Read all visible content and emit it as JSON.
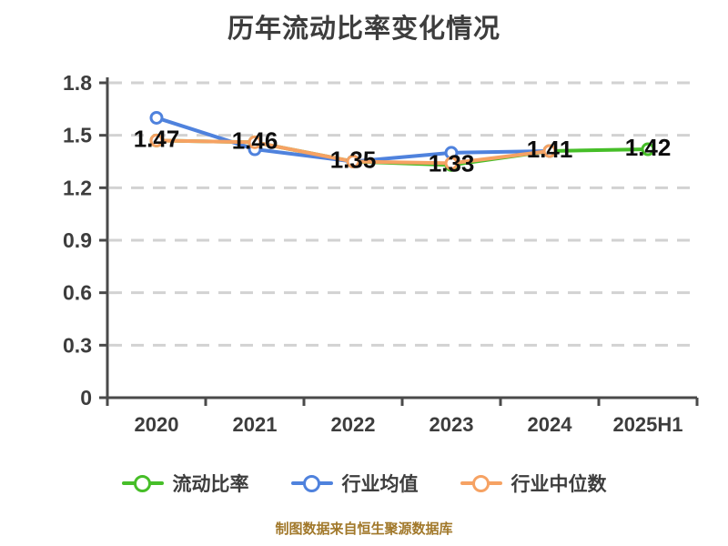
{
  "title": "历年流动比率变化情况",
  "footer": {
    "source_note": "制图数据来自恒生聚源数据库"
  },
  "theme": {
    "background": "#ffffff",
    "title_text": "#3d3d3d",
    "axis_line": "#4a4a4a",
    "grid_line": "#d2d2d2",
    "tick_text": "#3d3d3d",
    "label_text": "#0d0d0d",
    "legend_text": "#3d3d3d",
    "footer_text": "#a1782a"
  },
  "chart_data": {
    "type": "line",
    "title": "历年流动比率变化情况",
    "categories": [
      "2020",
      "2021",
      "2022",
      "2023",
      "2024",
      "2025H1"
    ],
    "series": [
      {
        "name": "流动比率",
        "color": "#46be28",
        "values": [
          1.47,
          1.46,
          1.35,
          1.33,
          1.41,
          1.42
        ]
      },
      {
        "name": "行业均值",
        "color": "#4f82dd",
        "values": [
          1.6,
          1.42,
          1.35,
          1.4,
          1.41,
          null
        ]
      },
      {
        "name": "行业中位数",
        "color": "#f6a263",
        "values": [
          1.47,
          1.46,
          1.35,
          1.34,
          1.41,
          null
        ]
      }
    ],
    "data_labels": [
      "1.47",
      "1.46",
      "1.35",
      "1.33",
      "1.41",
      "1.42"
    ],
    "xlabel": "",
    "ylabel": "",
    "ylim": [
      0,
      1.8
    ],
    "yticks": [
      "0",
      "0.3",
      "0.6",
      "0.9",
      "1.2",
      "1.5",
      "1.8"
    ],
    "grid": true,
    "grid_style": "dashed",
    "legend_position": "bottom",
    "marker_style": "circle-white-fill",
    "source_note": "制图数据来自恒生聚源数据库"
  }
}
